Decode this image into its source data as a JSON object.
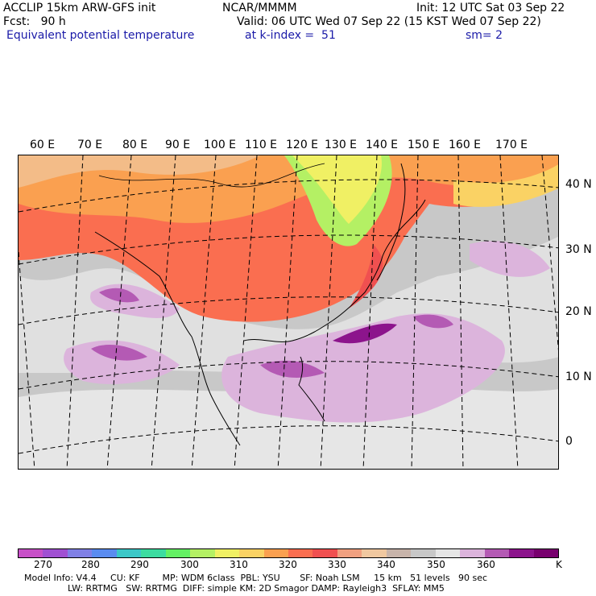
{
  "header": {
    "title_line": "ACCLIP 15km ARW-GFS init",
    "org": "NCAR/MMMM",
    "init": "Init: 12 UTC Sat 03 Sep 22",
    "fcst": "Fcst:   90 h",
    "valid": "Valid: 06 UTC Wed 07 Sep 22 (15 KST Wed 07 Sep 22)",
    "field": "Equivalent potential temperature",
    "level": "at k-index =  51",
    "smooth": "sm= 2"
  },
  "lon_labels": [
    "60 E",
    "70 E",
    "80 E",
    "90 E",
    "100 E",
    "110 E",
    "120 E",
    "130 E",
    "140 E",
    "150 E",
    "160 E",
    "170 E"
  ],
  "lat_labels": [
    "40 N",
    "30 N",
    "20 N",
    "10 N",
    "0"
  ],
  "colorbar": {
    "colors": [
      "#c850c8",
      "#a050d2",
      "#8080e6",
      "#5a8cf0",
      "#3cc8c8",
      "#3cdca0",
      "#64f064",
      "#b4f064",
      "#f0f064",
      "#fad264",
      "#faa050",
      "#fa6e50",
      "#f05050",
      "#f0a080",
      "#f0c8a0",
      "#c8b4aa",
      "#c8c8c8",
      "#e6e6e6",
      "#dcb4dc",
      "#b45ab4",
      "#8c148c",
      "#78006e"
    ],
    "ticks": [
      "270",
      "280",
      "290",
      "300",
      "310",
      "320",
      "330",
      "340",
      "350",
      "360",
      "K"
    ]
  },
  "footer": {
    "line1": "Model Info: V4.4     CU: KF        MP: WDM 6class  PBL: YSU       SF: Noah LSM     15 km   51 levels   90 sec",
    "line2": "LW: RRTMG   SW: RRTMG  DIFF: simple KM: 2D Smagor DAMP: Rayleigh3  SFLAY: MM5"
  }
}
